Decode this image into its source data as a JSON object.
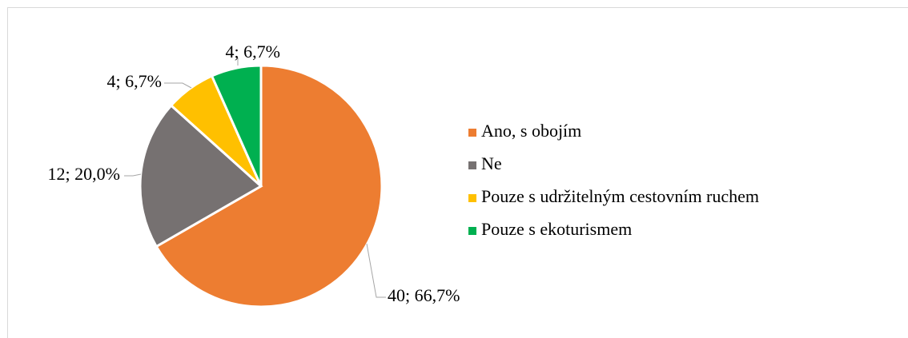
{
  "chart_data": {
    "type": "pie",
    "categories": [
      "Ano, s obojím",
      "Ne",
      "Pouze s udržitelným cestovním ruchem",
      "Pouze s ekoturismem"
    ],
    "values": [
      40,
      12,
      4,
      4
    ],
    "value_labels": [
      "40; 66,7%",
      "12; 20,0%",
      "4; 6,7%",
      "4; 6,7%"
    ],
    "colors": [
      "#ED7D31",
      "#767171",
      "#FFC000",
      "#00B050"
    ],
    "legend": "right"
  }
}
